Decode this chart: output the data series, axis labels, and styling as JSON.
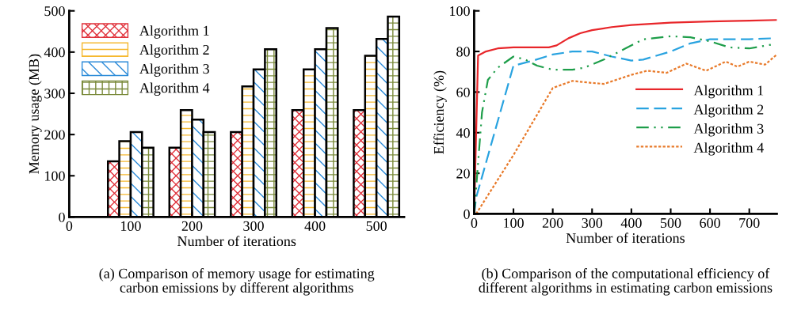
{
  "chart_data": [
    {
      "type": "bar",
      "x": [
        100,
        200,
        300,
        400,
        500
      ],
      "xlabel": "Number of iterations",
      "ylabel": "Memory usage (MB)",
      "xlim": [
        0,
        545
      ],
      "xticks": [
        0,
        100,
        200,
        300,
        400,
        500
      ],
      "ylim": [
        0,
        500
      ],
      "yticks": [
        0,
        100,
        200,
        300,
        400,
        500
      ],
      "grid": false,
      "legend": "top left",
      "series": [
        {
          "name": "Algorithm 1",
          "color": "#e0303a",
          "values": [
            135,
            168,
            206,
            259,
            259
          ]
        },
        {
          "name": "Algorithm 2",
          "color": "#f5b82e",
          "values": [
            184,
            259,
            317,
            358,
            391
          ]
        },
        {
          "name": "Algorithm 3",
          "color": "#2a8ad8",
          "values": [
            206,
            236,
            358,
            407,
            432
          ]
        },
        {
          "name": "Algorithm 4",
          "color": "#7a8a3a",
          "values": [
            168,
            206,
            407,
            458,
            486
          ]
        }
      ],
      "annotations": [
        "(a) Comparison of memory usage for estimating\ncarbon emissions by different algorithms"
      ]
    },
    {
      "type": "line",
      "xlabel": "Number of iterations",
      "ylabel": "Efficiency (%)",
      "xlim": [
        0,
        770
      ],
      "xticks": [
        0,
        100,
        200,
        300,
        400,
        500,
        600,
        700
      ],
      "ylim": [
        0,
        100
      ],
      "yticks": [
        0,
        20,
        40,
        60,
        80,
        100
      ],
      "grid": false,
      "legend": "right",
      "marker": "none",
      "series": [
        {
          "name": "Algorithm 1",
          "color": "#e8262a",
          "line_style": "solid",
          "x": [
            0,
            10,
            30,
            60,
            100,
            190,
            210,
            240,
            270,
            300,
            350,
            400,
            500,
            600,
            700,
            770
          ],
          "values": [
            0,
            78,
            80,
            81.5,
            82,
            82,
            83,
            86.5,
            89,
            90.5,
            92,
            93,
            94.2,
            94.8,
            95.2,
            95.5
          ]
        },
        {
          "name": "Algorithm 2",
          "color": "#29a3e0",
          "line_style": "dashed",
          "x": [
            0,
            5,
            100,
            150,
            200,
            250,
            300,
            350,
            400,
            430,
            500,
            550,
            600,
            700,
            760
          ],
          "values": [
            0,
            8,
            73,
            75.5,
            78.5,
            80,
            80,
            77.5,
            75.5,
            76,
            80,
            84,
            86,
            86,
            86.5
          ]
        },
        {
          "name": "Algorithm 3",
          "color": "#1e9e4a",
          "line_style": "dashdotdot",
          "x": [
            0,
            10,
            20,
            35,
            60,
            100,
            130,
            160,
            200,
            250,
            280,
            330,
            380,
            430,
            500,
            550,
            600,
            650,
            700,
            760
          ],
          "values": [
            0,
            25,
            50,
            66,
            72,
            77.5,
            76,
            73,
            71,
            71,
            72,
            76,
            81,
            86,
            87.5,
            87,
            85,
            82,
            81.5,
            83.5
          ]
        },
        {
          "name": "Algorithm 4",
          "color": "#e87a2a",
          "line_style": "dotted",
          "x": [
            5,
            100,
            200,
            250,
            300,
            330,
            400,
            440,
            490,
            540,
            590,
            640,
            670,
            700,
            740,
            770
          ],
          "values": [
            0,
            29,
            62,
            65.5,
            64.5,
            64,
            68.5,
            70.5,
            69.5,
            74,
            70.5,
            75,
            72.5,
            75,
            73.5,
            78.5
          ]
        }
      ],
      "annotations": [
        "(b) Comparison of the computational efficiency of\ndifferent algorithms in estimating carbon emissions"
      ]
    }
  ]
}
